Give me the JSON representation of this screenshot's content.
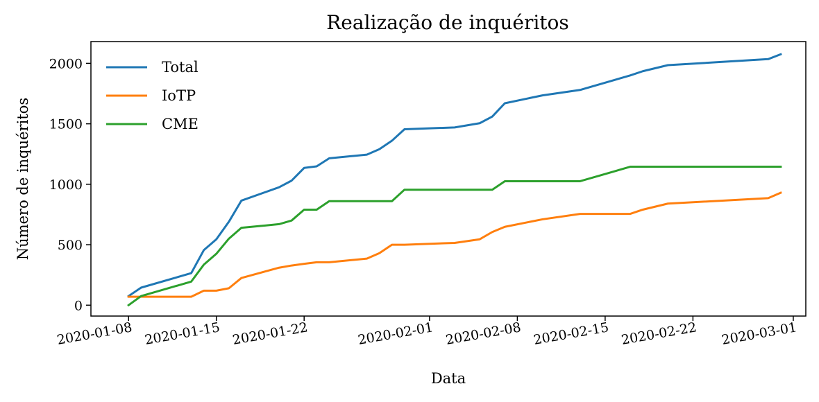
{
  "chart_data": {
    "type": "line",
    "title": "Realização de inquéritos",
    "xlabel": "Data",
    "ylabel": "Número de inquéritos",
    "xlim": [
      "2020-01-05",
      "2020-03-02"
    ],
    "ylim": [
      -90,
      2180
    ],
    "x_ticks": [
      "2020-01-08",
      "2020-01-15",
      "2020-01-22",
      "2020-02-01",
      "2020-02-08",
      "2020-02-15",
      "2020-02-22",
      "2020-03-01"
    ],
    "y_ticks": [
      0,
      500,
      1000,
      1500,
      2000
    ],
    "grid": false,
    "legend_position": "top-left",
    "series": [
      {
        "name": "Total",
        "color": "#1f77b4",
        "points": [
          [
            "2020-01-08",
            75
          ],
          [
            "2020-01-09",
            145
          ],
          [
            "2020-01-13",
            265
          ],
          [
            "2020-01-14",
            455
          ],
          [
            "2020-01-15",
            545
          ],
          [
            "2020-01-16",
            690
          ],
          [
            "2020-01-17",
            865
          ],
          [
            "2020-01-20",
            975
          ],
          [
            "2020-01-21",
            1030
          ],
          [
            "2020-01-22",
            1135
          ],
          [
            "2020-01-23",
            1148
          ],
          [
            "2020-01-24",
            1215
          ],
          [
            "2020-01-27",
            1245
          ],
          [
            "2020-01-28",
            1290
          ],
          [
            "2020-01-29",
            1360
          ],
          [
            "2020-01-30",
            1455
          ],
          [
            "2020-02-03",
            1470
          ],
          [
            "2020-02-05",
            1505
          ],
          [
            "2020-02-06",
            1560
          ],
          [
            "2020-02-07",
            1670
          ],
          [
            "2020-02-10",
            1735
          ],
          [
            "2020-02-13",
            1780
          ],
          [
            "2020-02-17",
            1900
          ],
          [
            "2020-02-18",
            1935
          ],
          [
            "2020-02-20",
            1985
          ],
          [
            "2020-02-28",
            2035
          ],
          [
            "2020-02-29",
            2075
          ]
        ]
      },
      {
        "name": "IoTP",
        "color": "#ff7f0e",
        "points": [
          [
            "2020-01-08",
            70
          ],
          [
            "2020-01-13",
            70
          ],
          [
            "2020-01-14",
            120
          ],
          [
            "2020-01-15",
            120
          ],
          [
            "2020-01-16",
            140
          ],
          [
            "2020-01-17",
            225
          ],
          [
            "2020-01-20",
            310
          ],
          [
            "2020-01-21",
            328
          ],
          [
            "2020-01-22",
            342
          ],
          [
            "2020-01-23",
            355
          ],
          [
            "2020-01-24",
            355
          ],
          [
            "2020-01-27",
            385
          ],
          [
            "2020-01-28",
            430
          ],
          [
            "2020-01-29",
            500
          ],
          [
            "2020-01-30",
            500
          ],
          [
            "2020-02-03",
            515
          ],
          [
            "2020-02-05",
            545
          ],
          [
            "2020-02-06",
            605
          ],
          [
            "2020-02-07",
            648
          ],
          [
            "2020-02-10",
            710
          ],
          [
            "2020-02-13",
            755
          ],
          [
            "2020-02-17",
            755
          ],
          [
            "2020-02-18",
            790
          ],
          [
            "2020-02-20",
            840
          ],
          [
            "2020-02-28",
            885
          ],
          [
            "2020-02-29",
            930
          ]
        ]
      },
      {
        "name": "CME",
        "color": "#2ca02c",
        "points": [
          [
            "2020-01-08",
            0
          ],
          [
            "2020-01-09",
            75
          ],
          [
            "2020-01-13",
            195
          ],
          [
            "2020-01-14",
            335
          ],
          [
            "2020-01-15",
            425
          ],
          [
            "2020-01-16",
            550
          ],
          [
            "2020-01-17",
            640
          ],
          [
            "2020-01-20",
            670
          ],
          [
            "2020-01-21",
            700
          ],
          [
            "2020-01-22",
            790
          ],
          [
            "2020-01-23",
            790
          ],
          [
            "2020-01-24",
            860
          ],
          [
            "2020-01-29",
            860
          ],
          [
            "2020-01-30",
            955
          ],
          [
            "2020-02-06",
            955
          ],
          [
            "2020-02-07",
            1025
          ],
          [
            "2020-02-13",
            1025
          ],
          [
            "2020-02-17",
            1145
          ],
          [
            "2020-02-29",
            1145
          ]
        ]
      }
    ]
  }
}
